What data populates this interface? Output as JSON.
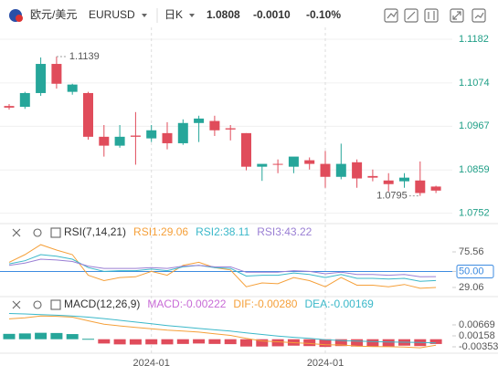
{
  "header": {
    "pair": "欧元/美元",
    "symbol": "EURUSD",
    "period": "日K",
    "change": "-0.0010",
    "change_pct": "-0.10%"
  },
  "chart_data": [
    {
      "type": "candlestick",
      "categories": [
        null,
        null,
        null,
        null,
        null,
        null,
        null,
        null,
        null,
        "2024-01",
        null,
        null,
        null,
        null,
        null,
        null,
        null,
        null,
        null,
        null,
        "2024-01",
        null,
        null,
        null,
        null,
        null,
        null,
        null
      ],
      "open": [
        1.1017,
        1.1015,
        1.1049,
        1.1121,
        1.1052,
        1.1049,
        1.0941,
        1.0919,
        1.0944,
        1.0937,
        1.095,
        1.0925,
        1.0975,
        1.098,
        1.0962,
        1.095,
        1.0867,
        1.0874,
        1.0867,
        1.0883,
        1.0874,
        1.0842,
        1.0878,
        1.0844,
        1.0833,
        1.0831,
        1.0833,
        1.0818
      ],
      "high": [
        1.1022,
        1.1052,
        1.1137,
        1.1139,
        1.1072,
        1.1052,
        1.097,
        1.097,
        1.1002,
        1.097,
        1.0977,
        1.0984,
        1.0993,
        1.0993,
        1.097,
        1.095,
        1.0871,
        1.0885,
        1.089,
        1.089,
        1.0906,
        1.0924,
        1.0885,
        1.086,
        1.0851,
        1.0851,
        1.088,
        1.082
      ],
      "low": [
        1.1008,
        1.101,
        1.1042,
        1.106,
        1.1045,
        1.0934,
        1.0892,
        1.0914,
        1.0872,
        1.0928,
        1.091,
        1.0921,
        1.0928,
        1.0943,
        1.0932,
        1.0858,
        1.0832,
        1.0851,
        1.0851,
        1.086,
        1.0815,
        1.0836,
        1.0815,
        1.0831,
        1.0806,
        1.0815,
        1.0795,
        1.0802
      ],
      "close": [
        1.1013,
        1.1049,
        1.1121,
        1.1072,
        1.107,
        1.0941,
        1.0919,
        1.0941,
        1.0941,
        1.0957,
        1.0925,
        1.0975,
        1.0986,
        1.0957,
        1.0959,
        1.0867,
        1.0874,
        1.0872,
        1.0892,
        1.0874,
        1.0842,
        1.0874,
        1.0838,
        1.084,
        1.0824,
        1.084,
        1.0802,
        1.0808
      ],
      "up_color": "#26a69a",
      "down_color": "#e04c5b",
      "ylim": [
        1.074,
        1.12
      ],
      "yticks": [
        1.1182,
        1.1074,
        1.0967,
        1.0859,
        1.0752
      ],
      "grid": true
    },
    {
      "type": "line",
      "title": "RSI(7,14,21)",
      "series": [
        {
          "name": "RSI1:29.06",
          "color": "#f5a03a",
          "values": [
            62,
            72,
            85,
            78,
            72,
            45,
            38,
            42,
            43,
            50,
            45,
            58,
            62,
            55,
            52,
            30,
            35,
            34,
            42,
            38,
            30,
            42,
            32,
            32,
            30,
            33,
            28,
            29.06
          ]
        },
        {
          "name": "RSI2:38.11",
          "color": "#3bb8c9",
          "values": [
            60,
            64,
            72,
            70,
            66,
            55,
            50,
            51,
            51,
            53,
            51,
            56,
            58,
            55,
            54,
            44,
            45,
            45,
            48,
            46,
            42,
            46,
            41,
            41,
            40,
            41,
            37,
            38.11
          ]
        },
        {
          "name": "RSI3:43.22",
          "color": "#9a7fd4",
          "values": [
            58,
            61,
            66,
            65,
            63,
            57,
            54,
            54,
            54,
            55,
            54,
            57,
            58,
            56,
            56,
            49,
            49,
            49,
            51,
            50,
            47,
            49,
            46,
            46,
            45,
            46,
            43,
            43.22
          ]
        }
      ],
      "ylim": [
        20,
        100
      ],
      "yticks": [
        75.56,
        {
          "value": 50,
          "label": "50.00"
        },
        29.06
      ],
      "ref_line": {
        "value": 50,
        "label": "50.00",
        "color": "#3d8be0"
      }
    },
    {
      "type": "macd",
      "title": "MACD(12,26,9)",
      "series": [
        {
          "name": "MACD:-0.00222",
          "color": "#c86bd6",
          "up_color": "#26a69a",
          "down_color": "#e04c5b",
          "values": [
            0.0025,
            0.0027,
            0.003,
            0.0029,
            0.0024,
            0.0002,
            -0.002,
            -0.0024,
            -0.0025,
            -0.0024,
            -0.0024,
            -0.0022,
            -0.002,
            -0.0022,
            -0.0023,
            -0.0034,
            -0.0034,
            -0.0033,
            -0.003,
            -0.0032,
            -0.0036,
            -0.0032,
            -0.0034,
            -0.0034,
            -0.0033,
            -0.003,
            -0.0032,
            -0.00222
          ]
        },
        {
          "name": "DIF:-0.00280",
          "color": "#f5a03a",
          "values": [
            0.0095,
            0.01,
            0.0108,
            0.0107,
            0.0103,
            0.0086,
            0.007,
            0.0062,
            0.0055,
            0.0049,
            0.0042,
            0.0038,
            0.0033,
            0.0025,
            0.0018,
            0.0004,
            -0.0008,
            -0.0012,
            -0.0016,
            -0.002,
            -0.0026,
            -0.0027,
            -0.0032,
            -0.0034,
            -0.0035,
            -0.0036,
            -0.004,
            -0.0028
          ]
        },
        {
          "name": "DEA:-0.00169",
          "color": "#3bb8c9",
          "values": [
            0.012,
            0.0118,
            0.0115,
            0.0112,
            0.0108,
            0.0103,
            0.0096,
            0.0088,
            0.008,
            0.0072,
            0.0064,
            0.0057,
            0.005,
            0.0044,
            0.0038,
            0.003,
            0.0022,
            0.0015,
            0.0009,
            0.0004,
            -0.0002,
            -0.0006,
            -0.0009,
            -0.0011,
            -0.0013,
            -0.0014,
            -0.0015,
            -0.00169
          ]
        }
      ],
      "ylim": [
        -0.006,
        0.014
      ],
      "yticks": [
        0.00669,
        0.00158,
        -0.00353
      ]
    }
  ]
}
